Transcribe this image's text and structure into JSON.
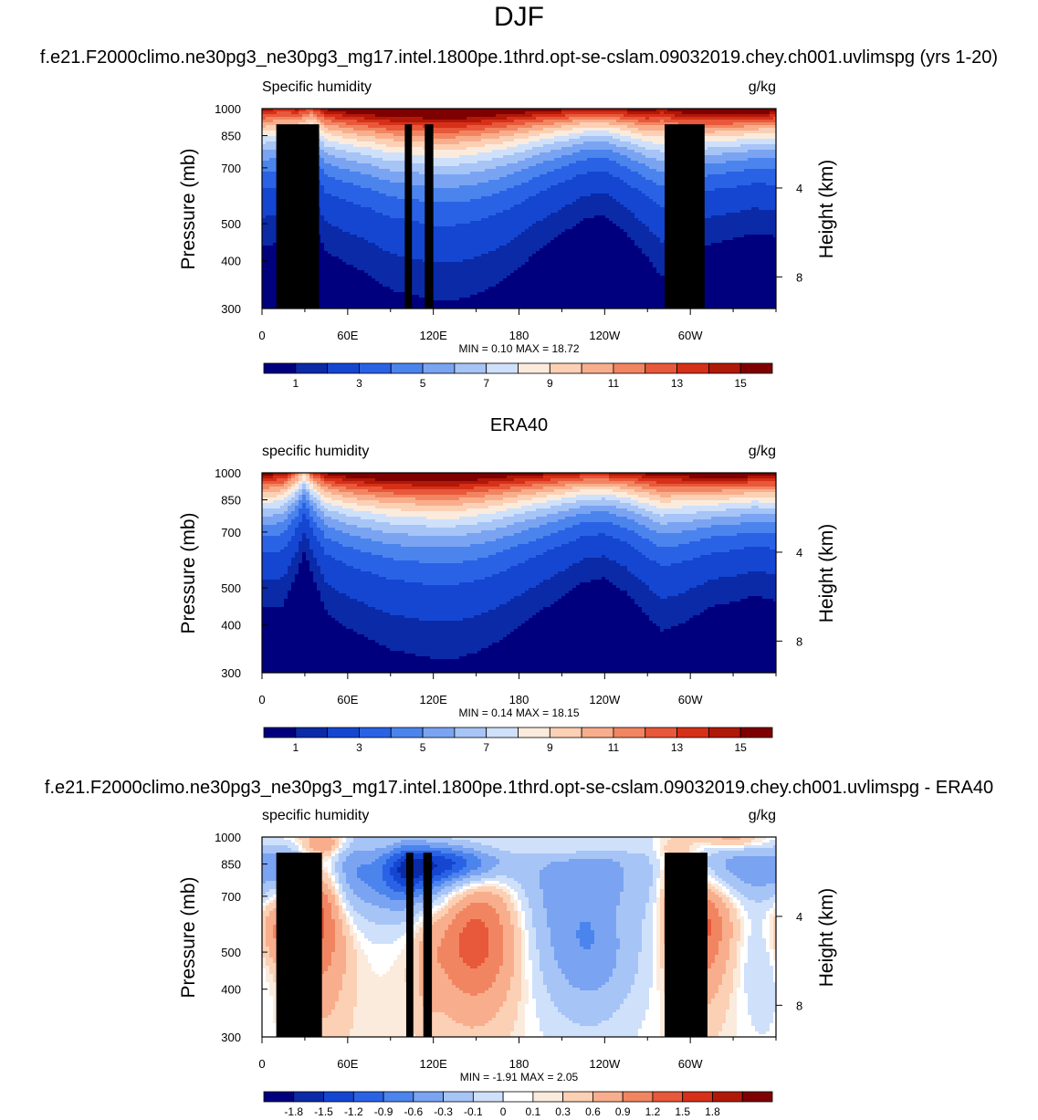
{
  "figure": {
    "title": "DJF",
    "colors": {
      "full": [
        "#00007f",
        "#0a2aa8",
        "#1446d2",
        "#2a62e6",
        "#4c84ee",
        "#7aa4f2",
        "#a6c4f6",
        "#cfe0fa",
        "#fbebdd",
        "#fcd0b4",
        "#f8ae8c",
        "#f28561",
        "#e8583a",
        "#d63018",
        "#b01808",
        "#7f0000"
      ],
      "diff": [
        "#00007f",
        "#0a2aa8",
        "#1446d2",
        "#2a62e6",
        "#4c84ee",
        "#7aa4f2",
        "#a6c4f6",
        "#cfe0fa",
        "#ffffff",
        "#fbebdd",
        "#fcd0b4",
        "#f8ae8c",
        "#f28561",
        "#e8583a",
        "#d63018",
        "#b01808",
        "#7f0000"
      ],
      "terrain": "#000000"
    }
  },
  "chart_data": [
    {
      "type": "heatmap",
      "panel_title": "f.e21.F2000climo.ne30pg3_ne30pg3_mg17.intel.1800pe.1thrd.opt-se-cslam.09032019.chey.ch001.uvlimspg (yrs 1-20)",
      "left_label": "Specific humidity",
      "right_label": "g/kg",
      "ylabel": "Pressure (mb)",
      "ylabel_right": "Height (km)",
      "y_ticks": [
        "300",
        "400",
        "500",
        "700",
        "850",
        "1000"
      ],
      "y_ticks_right": [
        "8",
        "4"
      ],
      "x_ticks": [
        "0",
        "60E",
        "120E",
        "180",
        "120W",
        "60W"
      ],
      "xlim": [
        0,
        360
      ],
      "ylim": [
        1000,
        300
      ],
      "min_max": "MIN =   0.10  MAX =  18.72",
      "colorbar_levels": [
        0.5,
        1,
        2,
        3,
        4,
        5,
        6,
        7,
        8,
        9,
        10,
        11,
        12,
        13,
        14,
        15
      ],
      "colorbar_tick_labels": [
        "1",
        "3",
        "5",
        "7",
        "9",
        "11",
        "13",
        "15"
      ],
      "colorbar_label_slots": [
        1,
        3,
        5,
        7,
        9,
        11,
        13,
        15
      ],
      "field": {
        "lons": [
          0,
          15,
          25,
          35,
          45,
          60,
          75,
          90,
          105,
          120,
          135,
          150,
          165,
          180,
          195,
          210,
          225,
          240,
          255,
          270,
          280,
          290,
          300,
          315,
          330,
          345,
          360
        ],
        "surface": [
          14,
          13,
          13.5,
          12,
          14.5,
          15.5,
          16,
          16.5,
          16.5,
          17,
          17,
          16.5,
          16,
          15.5,
          15,
          14.5,
          14,
          14,
          14.5,
          15,
          14,
          15,
          16,
          16.5,
          16.5,
          16,
          15.5
        ],
        "scale_height": [
          0.155,
          0.155,
          0.15,
          0.13,
          0.16,
          0.17,
          0.18,
          0.195,
          0.2,
          0.205,
          0.205,
          0.2,
          0.19,
          0.175,
          0.155,
          0.14,
          0.125,
          0.12,
          0.14,
          0.165,
          0.19,
          0.18,
          0.16,
          0.145,
          0.14,
          0.135,
          0.14
        ]
      },
      "terrain_boxes": [
        {
          "lon0": 10,
          "lon1": 40,
          "p_top": 910
        },
        {
          "lon0": 28,
          "lon1": 36,
          "p_top": 850
        },
        {
          "lon0": 100,
          "lon1": 105,
          "p_top": 910
        },
        {
          "lon0": 114,
          "lon1": 120,
          "p_top": 910
        },
        {
          "lon0": 282,
          "lon1": 310,
          "p_top": 910
        }
      ]
    },
    {
      "type": "heatmap",
      "panel_title": "ERA40",
      "left_label": "specific humidity",
      "right_label": "g/kg",
      "ylabel": "Pressure (mb)",
      "ylabel_right": "Height (km)",
      "y_ticks": [
        "300",
        "400",
        "500",
        "700",
        "850",
        "1000"
      ],
      "y_ticks_right": [
        "8",
        "4"
      ],
      "x_ticks": [
        "0",
        "60E",
        "120E",
        "180",
        "120W",
        "60W"
      ],
      "xlim": [
        0,
        360
      ],
      "ylim": [
        1000,
        300
      ],
      "min_max": "MIN =   0.14  MAX =  18.15",
      "colorbar_levels": [
        0.5,
        1,
        2,
        3,
        4,
        5,
        6,
        7,
        8,
        9,
        10,
        11,
        12,
        13,
        14,
        15
      ],
      "colorbar_tick_labels": [
        "1",
        "3",
        "5",
        "7",
        "9",
        "11",
        "13",
        "15"
      ],
      "colorbar_label_slots": [
        1,
        3,
        5,
        7,
        9,
        11,
        13,
        15
      ],
      "field": {
        "lons": [
          0,
          15,
          25,
          30,
          35,
          45,
          60,
          75,
          90,
          105,
          120,
          135,
          150,
          165,
          180,
          195,
          210,
          225,
          240,
          255,
          270,
          280,
          290,
          300,
          315,
          330,
          345,
          360
        ],
        "surface": [
          15,
          14,
          11,
          9,
          12,
          14.5,
          15.5,
          16,
          16.5,
          16.5,
          16.5,
          16.5,
          16,
          15.5,
          15,
          14.5,
          14,
          13.5,
          13.5,
          14,
          14.5,
          15,
          15,
          15.5,
          16,
          16,
          15.5,
          15.5
        ],
        "scale_height": [
          0.15,
          0.15,
          0.12,
          0.1,
          0.12,
          0.155,
          0.17,
          0.18,
          0.19,
          0.195,
          0.2,
          0.2,
          0.195,
          0.185,
          0.17,
          0.155,
          0.14,
          0.125,
          0.12,
          0.135,
          0.16,
          0.175,
          0.17,
          0.16,
          0.145,
          0.14,
          0.135,
          0.14
        ]
      },
      "terrain_boxes": []
    },
    {
      "type": "heatmap",
      "panel_title": "f.e21.F2000climo.ne30pg3_ne30pg3_mg17.intel.1800pe.1thrd.opt-se-cslam.09032019.chey.ch001.uvlimspg - ERA40",
      "left_label": "specific humidity",
      "right_label": "g/kg",
      "ylabel": "Pressure (mb)",
      "ylabel_right": "Height (km)",
      "y_ticks": [
        "300",
        "400",
        "500",
        "700",
        "850",
        "1000"
      ],
      "y_ticks_right": [
        "8",
        "4"
      ],
      "x_ticks": [
        "0",
        "60E",
        "120E",
        "180",
        "120W",
        "60W"
      ],
      "xlim": [
        0,
        360
      ],
      "ylim": [
        1000,
        300
      ],
      "min_max": "MIN =  -1.91  MAX =   2.05",
      "colorbar_levels": [
        -2.1,
        -1.8,
        -1.5,
        -1.2,
        -0.9,
        -0.6,
        -0.3,
        -0.1,
        0,
        0.1,
        0.3,
        0.6,
        0.9,
        1.2,
        1.5,
        1.8
      ],
      "colorbar_tick_labels": [
        "-1.8",
        "-1.5",
        "-1.2",
        "-0.9",
        "-0.6",
        "-0.3",
        "-0.1",
        "0",
        "0.1",
        "0.3",
        "0.6",
        "0.9",
        "1.2",
        "1.5",
        "1.8"
      ],
      "colorbar_label_slots": [
        1,
        2,
        3,
        4,
        5,
        6,
        7,
        8,
        9,
        10,
        11,
        12,
        13,
        14,
        15
      ],
      "blobs": [
        {
          "lon": 30,
          "p": 650,
          "lw": 14,
          "pw": 150,
          "v": 0.7
        },
        {
          "lon": 45,
          "p": 600,
          "lw": 14,
          "pw": 200,
          "v": 0.6
        },
        {
          "lon": 10,
          "p": 560,
          "lw": 12,
          "pw": 80,
          "v": 0.5
        },
        {
          "lon": 20,
          "p": 830,
          "lw": 14,
          "pw": 80,
          "v": -0.9
        },
        {
          "lon": 45,
          "p": 960,
          "lw": 12,
          "pw": 50,
          "v": 0.6
        },
        {
          "lon": 85,
          "p": 780,
          "lw": 22,
          "pw": 130,
          "v": -0.9
        },
        {
          "lon": 100,
          "p": 830,
          "lw": 10,
          "pw": 90,
          "v": -0.6
        },
        {
          "lon": 115,
          "p": 520,
          "lw": 7,
          "pw": 200,
          "v": 0.2
        },
        {
          "lon": 150,
          "p": 520,
          "lw": 24,
          "pw": 130,
          "v": 1.1
        },
        {
          "lon": 160,
          "p": 700,
          "lw": 20,
          "pw": 100,
          "v": 0.4
        },
        {
          "lon": 135,
          "p": 850,
          "lw": 22,
          "pw": 70,
          "v": -1.2
        },
        {
          "lon": 115,
          "p": 800,
          "lw": 14,
          "pw": 130,
          "v": -0.7
        },
        {
          "lon": 215,
          "p": 720,
          "lw": 40,
          "pw": 200,
          "v": -0.8
        },
        {
          "lon": 230,
          "p": 470,
          "lw": 24,
          "pw": 110,
          "v": -0.5
        },
        {
          "lon": 215,
          "p": 935,
          "lw": 36,
          "pw": 30,
          "v": 0.3
        },
        {
          "lon": 255,
          "p": 800,
          "lw": 18,
          "pw": 120,
          "v": -0.3
        },
        {
          "lon": 255,
          "p": 700,
          "lw": 8,
          "pw": 150,
          "v": 0.2
        },
        {
          "lon": 305,
          "p": 570,
          "lw": 16,
          "pw": 140,
          "v": 1.0
        },
        {
          "lon": 320,
          "p": 720,
          "lw": 16,
          "pw": 110,
          "v": 0.3
        },
        {
          "lon": 335,
          "p": 820,
          "lw": 24,
          "pw": 110,
          "v": -0.9
        },
        {
          "lon": 350,
          "p": 480,
          "lw": 12,
          "pw": 120,
          "v": -0.3
        },
        {
          "lon": 290,
          "p": 780,
          "lw": 10,
          "pw": 160,
          "v": 0.5
        },
        {
          "lon": 60,
          "p": 850,
          "lw": 10,
          "pw": 160,
          "v": -0.5
        },
        {
          "lon": 330,
          "p": 980,
          "lw": 16,
          "pw": 40,
          "v": 0.6
        }
      ],
      "terrain_boxes": [
        {
          "lon0": 10,
          "lon1": 42,
          "p_top": 910
        },
        {
          "lon0": 28,
          "lon1": 37,
          "p_top": 850
        },
        {
          "lon0": 101,
          "lon1": 106,
          "p_top": 910
        },
        {
          "lon0": 113,
          "lon1": 119,
          "p_top": 910
        },
        {
          "lon0": 282,
          "lon1": 312,
          "p_top": 910
        }
      ]
    }
  ]
}
